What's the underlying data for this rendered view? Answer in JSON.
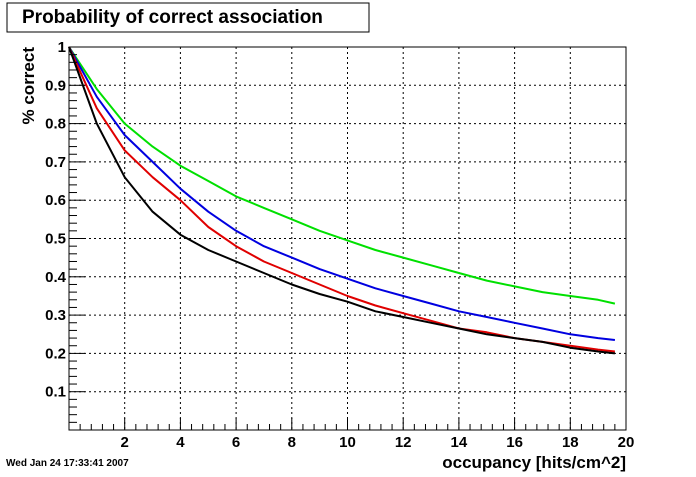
{
  "chart_data": {
    "type": "line",
    "title": "Probability of correct association",
    "xlabel": "occupancy [hits/cm^2]",
    "ylabel": "% correct",
    "xlim": [
      0,
      20
    ],
    "ylim": [
      0,
      1
    ],
    "x_ticks": [
      "2",
      "4",
      "6",
      "8",
      "10",
      "12",
      "14",
      "16",
      "18",
      "20"
    ],
    "y_ticks": [
      "0.1",
      "0.2",
      "0.3",
      "0.4",
      "0.5",
      "0.6",
      "0.7",
      "0.8",
      "0.9",
      "1"
    ],
    "grid": true,
    "series": [
      {
        "color": "#00e000",
        "x": [
          0,
          1,
          2,
          3,
          4,
          5,
          6,
          7,
          8,
          9,
          10,
          11,
          12,
          13,
          14,
          15,
          16,
          17,
          18,
          19,
          19.6
        ],
        "values": [
          1.0,
          0.89,
          0.8,
          0.74,
          0.69,
          0.65,
          0.61,
          0.58,
          0.55,
          0.52,
          0.495,
          0.47,
          0.45,
          0.43,
          0.41,
          0.39,
          0.375,
          0.36,
          0.35,
          0.34,
          0.33
        ]
      },
      {
        "color": "#0000e0",
        "x": [
          0,
          1,
          2,
          3,
          4,
          5,
          6,
          7,
          8,
          9,
          10,
          11,
          12,
          13,
          14,
          15,
          16,
          17,
          18,
          19,
          19.6
        ],
        "values": [
          1.0,
          0.87,
          0.77,
          0.7,
          0.63,
          0.57,
          0.52,
          0.48,
          0.45,
          0.42,
          0.395,
          0.37,
          0.35,
          0.33,
          0.31,
          0.295,
          0.28,
          0.265,
          0.25,
          0.24,
          0.235
        ]
      },
      {
        "color": "#e00000",
        "x": [
          0,
          1,
          2,
          3,
          4,
          5,
          6,
          7,
          8,
          9,
          10,
          11,
          12,
          13,
          14,
          15,
          16,
          17,
          18,
          19,
          19.6
        ],
        "values": [
          1.0,
          0.84,
          0.73,
          0.66,
          0.6,
          0.53,
          0.48,
          0.44,
          0.41,
          0.38,
          0.35,
          0.325,
          0.305,
          0.285,
          0.265,
          0.255,
          0.24,
          0.23,
          0.22,
          0.21,
          0.205
        ]
      },
      {
        "color": "#000000",
        "x": [
          0,
          1,
          2,
          3,
          4,
          5,
          6,
          7,
          8,
          9,
          10,
          11,
          12,
          13,
          14,
          15,
          16,
          17,
          18,
          19,
          19.6
        ],
        "values": [
          1.0,
          0.8,
          0.66,
          0.57,
          0.51,
          0.47,
          0.44,
          0.41,
          0.38,
          0.355,
          0.335,
          0.31,
          0.295,
          0.28,
          0.265,
          0.25,
          0.24,
          0.23,
          0.215,
          0.205,
          0.2
        ]
      }
    ]
  },
  "timestamp": "Wed Jan 24 17:33:41 2007"
}
